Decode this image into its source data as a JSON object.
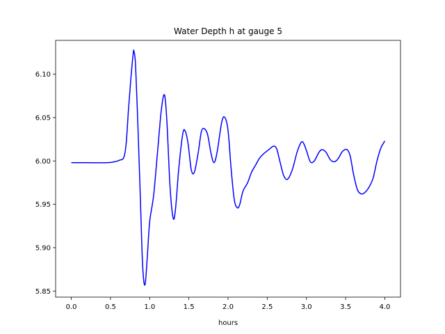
{
  "chart_data": {
    "type": "line",
    "title": "Water Depth h at gauge 5",
    "xlabel": "hours",
    "ylabel": "",
    "xlim": [
      -0.2,
      4.2
    ],
    "ylim": [
      5.843,
      6.139
    ],
    "grid": false,
    "x_ticks": [
      "0.0",
      "0.5",
      "1.0",
      "1.5",
      "2.0",
      "2.5",
      "3.0",
      "3.5",
      "4.0"
    ],
    "y_ticks": [
      "5.85",
      "5.90",
      "5.95",
      "6.00",
      "6.05",
      "6.10"
    ],
    "series": [
      {
        "color": "#0000ff",
        "points": [
          [
            0.0,
            5.998
          ],
          [
            0.2,
            5.998
          ],
          [
            0.45,
            5.998
          ],
          [
            0.55,
            5.999
          ],
          [
            0.62,
            6.001
          ],
          [
            0.67,
            6.004
          ],
          [
            0.7,
            6.02
          ],
          [
            0.73,
            6.06
          ],
          [
            0.76,
            6.095
          ],
          [
            0.79,
            6.124
          ],
          [
            0.8,
            6.126
          ],
          [
            0.82,
            6.11
          ],
          [
            0.85,
            6.04
          ],
          [
            0.88,
            5.96
          ],
          [
            0.91,
            5.88
          ],
          [
            0.94,
            5.857
          ],
          [
            0.97,
            5.89
          ],
          [
            1.0,
            5.93
          ],
          [
            1.05,
            5.96
          ],
          [
            1.1,
            6.01
          ],
          [
            1.15,
            6.06
          ],
          [
            1.19,
            6.076
          ],
          [
            1.22,
            6.045
          ],
          [
            1.26,
            5.97
          ],
          [
            1.3,
            5.934
          ],
          [
            1.33,
            5.945
          ],
          [
            1.37,
            5.99
          ],
          [
            1.42,
            6.03
          ],
          [
            1.45,
            6.035
          ],
          [
            1.49,
            6.02
          ],
          [
            1.53,
            5.99
          ],
          [
            1.57,
            5.987
          ],
          [
            1.62,
            6.01
          ],
          [
            1.66,
            6.034
          ],
          [
            1.7,
            6.037
          ],
          [
            1.74,
            6.03
          ],
          [
            1.78,
            6.01
          ],
          [
            1.82,
            5.998
          ],
          [
            1.86,
            6.01
          ],
          [
            1.92,
            6.045
          ],
          [
            1.96,
            6.05
          ],
          [
            2.0,
            6.035
          ],
          [
            2.04,
            5.99
          ],
          [
            2.08,
            5.955
          ],
          [
            2.12,
            5.946
          ],
          [
            2.15,
            5.95
          ],
          [
            2.19,
            5.965
          ],
          [
            2.25,
            5.975
          ],
          [
            2.3,
            5.987
          ],
          [
            2.35,
            5.995
          ],
          [
            2.4,
            6.003
          ],
          [
            2.45,
            6.008
          ],
          [
            2.52,
            6.013
          ],
          [
            2.58,
            6.017
          ],
          [
            2.62,
            6.014
          ],
          [
            2.66,
            6.0
          ],
          [
            2.71,
            5.983
          ],
          [
            2.76,
            5.979
          ],
          [
            2.82,
            5.99
          ],
          [
            2.88,
            6.01
          ],
          [
            2.93,
            6.021
          ],
          [
            2.96,
            6.021
          ],
          [
            3.0,
            6.012
          ],
          [
            3.05,
            5.999
          ],
          [
            3.1,
            6.0
          ],
          [
            3.16,
            6.01
          ],
          [
            3.2,
            6.013
          ],
          [
            3.25,
            6.01
          ],
          [
            3.3,
            6.002
          ],
          [
            3.35,
            5.999
          ],
          [
            3.4,
            6.002
          ],
          [
            3.46,
            6.011
          ],
          [
            3.52,
            6.013
          ],
          [
            3.56,
            6.005
          ],
          [
            3.6,
            5.985
          ],
          [
            3.65,
            5.967
          ],
          [
            3.7,
            5.962
          ],
          [
            3.75,
            5.964
          ],
          [
            3.8,
            5.97
          ],
          [
            3.85,
            5.98
          ],
          [
            3.9,
            6.0
          ],
          [
            3.95,
            6.015
          ],
          [
            4.0,
            6.023
          ]
        ]
      }
    ]
  }
}
